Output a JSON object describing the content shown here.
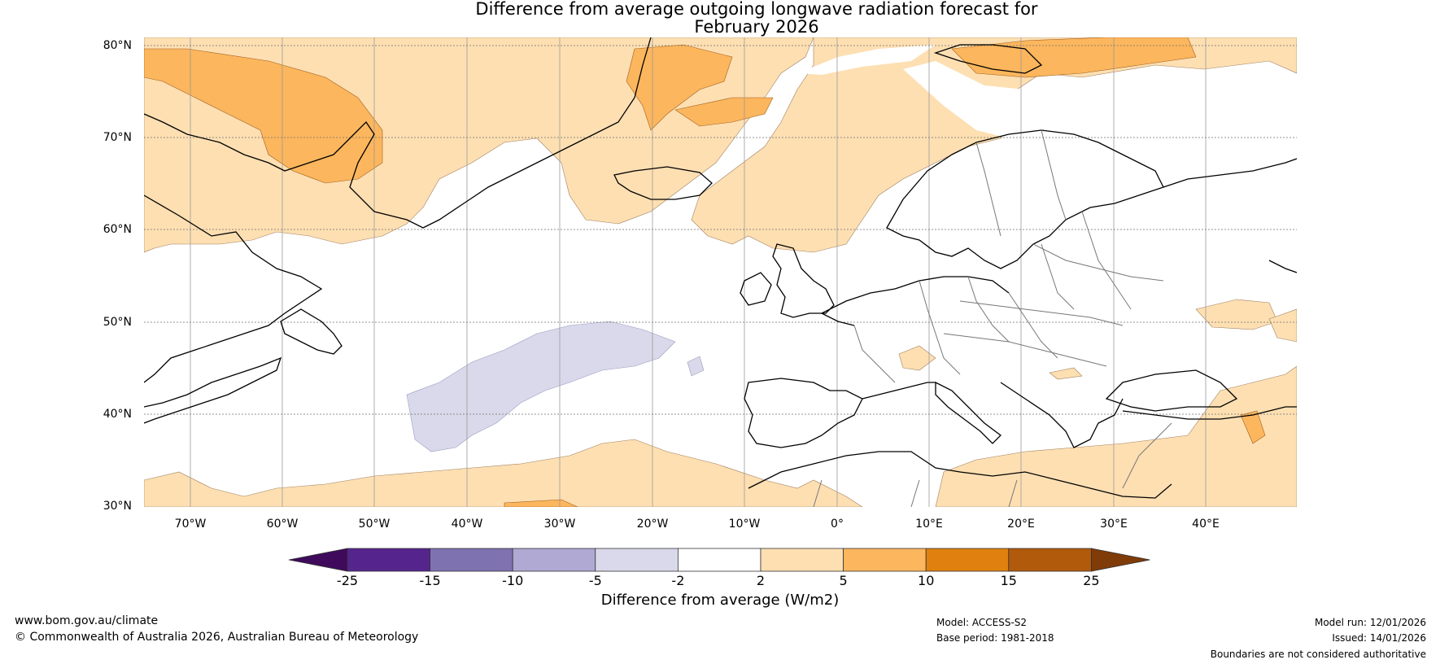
{
  "title": {
    "line1": "Difference from average outgoing longwave radiation forecast for",
    "line2": "February 2026"
  },
  "map": {
    "lat_labels": [
      "80°N",
      "70°N",
      "60°N",
      "50°N",
      "40°N",
      "30°N"
    ],
    "lon_labels": [
      "70°W",
      "60°W",
      "50°W",
      "40°W",
      "30°W",
      "20°W",
      "10°W",
      "0°",
      "10°E",
      "20°E",
      "30°E",
      "40°E"
    ]
  },
  "colorbar": {
    "title": "Difference from average (W/m2)",
    "ticks": [
      "-25",
      "-15",
      "-10",
      "-5",
      "-2",
      "2",
      "5",
      "10",
      "15",
      "25"
    ],
    "colors": [
      "#3f0a5c",
      "#55258d",
      "#7f72b0",
      "#b0a9d4",
      "#d9d9eb",
      "#ffffff",
      "#fddfb2",
      "#fcb65d",
      "#e0810f",
      "#b25a0b",
      "#7f3b08"
    ]
  },
  "footer": {
    "website": "www.bom.gov.au/climate",
    "copyright": "© Commonwealth of Australia 2026, Australian Bureau of Meteorology",
    "model": "Model: ACCESS-S2",
    "base_period": "Base period: 1981-2018",
    "model_run": "Model run: 12/01/2026",
    "issued": "Issued: 14/01/2026",
    "disclaimer": "Boundaries are not considered authoritative"
  }
}
